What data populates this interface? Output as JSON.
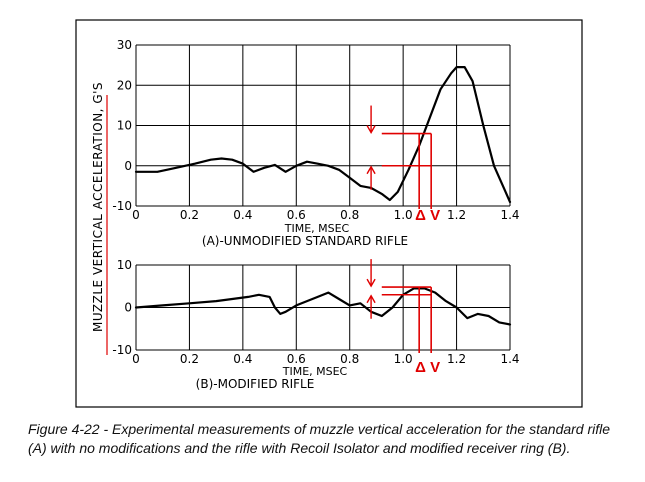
{
  "caption": "Figure 4-22 - Experimental measurements of muzzle vertical acceleration for the standard rifle (A) with no modifications and the rifle with Recoil Isolator and modified receiver ring (B).",
  "ylabel": "MUZZLE VERTICAL ACCELERATION, G'S",
  "annotation_label": "Δ V",
  "colors": {
    "annotation": "#e00000",
    "ink": "#000000"
  },
  "chart_data": [
    {
      "type": "line",
      "title": "(A)-UNMODIFIED STANDARD RIFLE",
      "xlabel": "TIME, MSEC",
      "ylabel": "MUZZLE VERTICAL ACCELERATION, G'S",
      "xlim": [
        0,
        1.4
      ],
      "ylim": [
        -10,
        30
      ],
      "xticks": [
        0,
        0.2,
        0.4,
        0.6,
        0.8,
        1.0,
        1.2,
        1.4
      ],
      "xtick_labels": [
        "0",
        "0.2",
        "0.4",
        "0.6",
        "0.8",
        "1.0",
        "1.2",
        "1.4"
      ],
      "yticks": [
        -10,
        0,
        10,
        20,
        30
      ],
      "ytick_labels": [
        "-10",
        "0",
        "10",
        "20",
        "30"
      ],
      "grid": true,
      "series": [
        {
          "name": "A",
          "x": [
            0,
            0.08,
            0.15,
            0.22,
            0.28,
            0.32,
            0.36,
            0.4,
            0.44,
            0.48,
            0.52,
            0.56,
            0.6,
            0.64,
            0.68,
            0.72,
            0.76,
            0.8,
            0.84,
            0.88,
            0.92,
            0.95,
            0.98,
            1.02,
            1.06,
            1.1,
            1.14,
            1.18,
            1.2,
            1.23,
            1.26,
            1.3,
            1.34,
            1.38,
            1.4
          ],
          "y": [
            -1.5,
            -1.5,
            -0.5,
            0.5,
            1.5,
            1.8,
            1.5,
            0.5,
            -1.5,
            -0.5,
            0.2,
            -1.5,
            0,
            1.0,
            0.5,
            0,
            -1,
            -3,
            -5,
            -5.5,
            -7,
            -8.5,
            -6.5,
            -1,
            5,
            12,
            19,
            23,
            24.5,
            24.5,
            21,
            10,
            0,
            -6,
            -9
          ]
        }
      ],
      "annotation": {
        "x": 1.06,
        "y_low": 0,
        "y_high": 8
      }
    },
    {
      "type": "line",
      "title": "(B)-MODIFIED RIFLE",
      "xlabel": "TIME, MSEC",
      "ylabel": "MUZZLE VERTICAL ACCELERATION, G'S",
      "xlim": [
        0,
        1.4
      ],
      "ylim": [
        -10,
        10
      ],
      "xticks": [
        0,
        0.2,
        0.4,
        0.6,
        0.8,
        1.0,
        1.2,
        1.4
      ],
      "xtick_labels": [
        "0",
        "0.2",
        "0.4",
        "0.6",
        "0.8",
        "1.0",
        "1.2",
        "1.4"
      ],
      "yticks": [
        -10,
        0,
        10
      ],
      "ytick_labels": [
        "-10",
        "0",
        "10"
      ],
      "grid": true,
      "series": [
        {
          "name": "B",
          "x": [
            0,
            0.1,
            0.2,
            0.3,
            0.36,
            0.42,
            0.46,
            0.5,
            0.52,
            0.54,
            0.56,
            0.6,
            0.64,
            0.68,
            0.72,
            0.76,
            0.8,
            0.84,
            0.88,
            0.92,
            0.96,
            1.0,
            1.04,
            1.08,
            1.12,
            1.16,
            1.2,
            1.24,
            1.28,
            1.32,
            1.36,
            1.4
          ],
          "y": [
            0,
            0.5,
            1.0,
            1.5,
            2.0,
            2.5,
            3.0,
            2.5,
            0,
            -1.5,
            -1,
            0.5,
            1.5,
            2.5,
            3.5,
            2.0,
            0.5,
            1.0,
            -1.0,
            -2.0,
            0,
            3.0,
            4.5,
            4.5,
            3.5,
            1.5,
            0,
            -2.5,
            -1.5,
            -2.0,
            -3.5,
            -4.0
          ]
        }
      ],
      "annotation": {
        "x": 1.06,
        "y_low": 3.0,
        "y_high": 4.8
      }
    }
  ]
}
